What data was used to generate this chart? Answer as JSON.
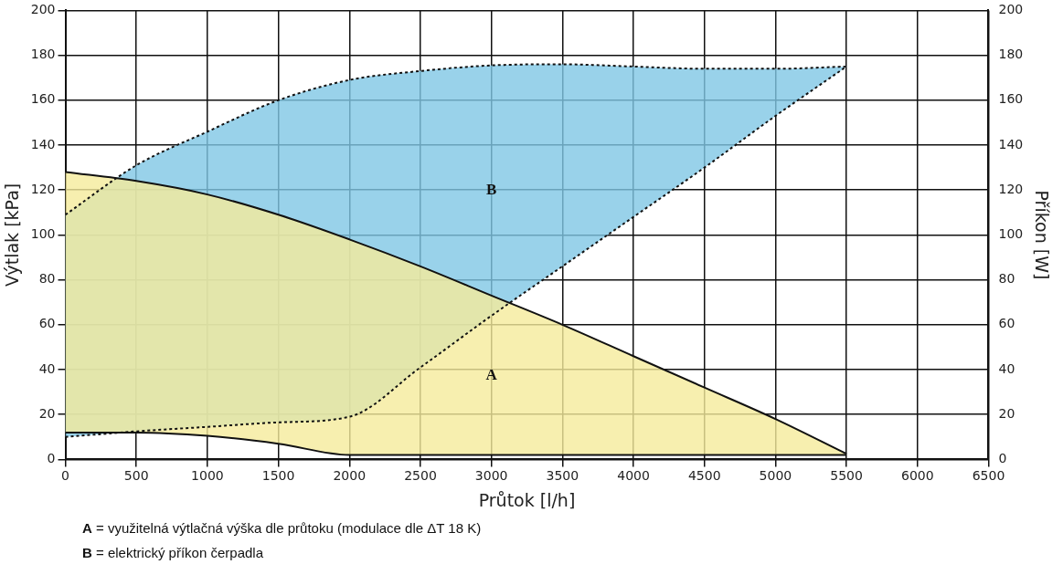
{
  "chart_data": {
    "type": "area",
    "xlabel": "Průtok [l/h]",
    "ylabel": "Výtlak [kPa]",
    "y2label": "Příkon [W]",
    "xlim": [
      0,
      6500
    ],
    "xticks": [
      0,
      500,
      1000,
      1500,
      2000,
      2500,
      3000,
      3500,
      4000,
      4500,
      5000,
      5500,
      6000,
      6500
    ],
    "ylim": [
      0,
      200
    ],
    "yticks": [
      0,
      20,
      40,
      60,
      80,
      100,
      120,
      140,
      160,
      180,
      200
    ],
    "y2lim": [
      0,
      200
    ],
    "y2ticks": [
      0,
      20,
      40,
      60,
      80,
      100,
      120,
      140,
      160,
      180,
      200
    ],
    "grid": true,
    "x": [
      0,
      500,
      1000,
      1500,
      2000,
      2500,
      3000,
      3500,
      4000,
      4500,
      5000,
      5500
    ],
    "series": [
      {
        "name": "A",
        "color": "#f5eb9b",
        "line_style": "solid",
        "values": [
          128,
          124,
          118,
          109,
          98,
          86,
          73,
          60,
          46,
          32,
          18,
          2.5
        ]
      },
      {
        "type": "line",
        "color": "#111111",
        "line_style": "solid",
        "values": [
          12,
          12,
          10.5,
          7,
          2,
          2,
          2,
          2,
          2,
          2,
          2,
          2
        ]
      },
      {
        "name": "B",
        "color": "#7fc7e5",
        "line_style": "dotted",
        "values": [
          109,
          131,
          146,
          160,
          169,
          173,
          175.5,
          176,
          175,
          174,
          174,
          175
        ]
      },
      {
        "type": "line",
        "color": "#111111",
        "line_style": "dotted",
        "values": [
          10,
          12.5,
          14.5,
          16.5,
          19,
          41,
          64,
          86,
          108,
          130,
          153,
          175
        ]
      }
    ],
    "annotations": [
      "A = využitelná výtlačná výška dle průtoku (modulace dle ΔT 18 K)",
      "B = elektrický příkon čerpadla"
    ]
  }
}
